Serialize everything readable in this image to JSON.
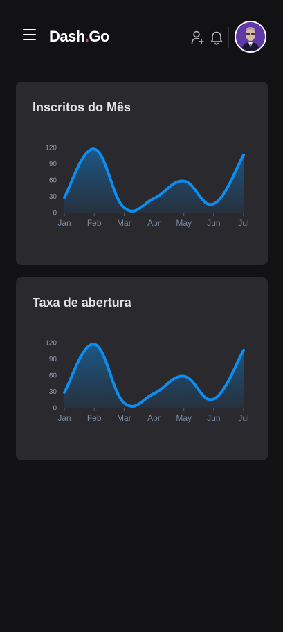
{
  "header": {
    "logo_main": "Dash",
    "logo_dot": ".",
    "logo_suffix": "Go",
    "menu_icon": "hamburger-menu-icon",
    "add_user_icon": "user-add-icon",
    "notification_icon": "bell-icon"
  },
  "colors": {
    "background": "#121214",
    "card": "#29292e",
    "accent_line": "#0b8ef0",
    "logo_dot": "#d53f8c"
  },
  "charts": [
    {
      "title": "Inscritos do Mês",
      "chart_data": {
        "type": "area",
        "title": "Inscritos do Mês",
        "categories": [
          "Jan",
          "Feb",
          "Mar",
          "Apr",
          "May",
          "Jun",
          "Jul"
        ],
        "series": [
          {
            "values": [
              28,
              117,
              9,
              26,
              58,
              16,
              106
            ]
          }
        ],
        "yticks": [
          0,
          30,
          60,
          90,
          120
        ],
        "ylim": [
          0,
          120
        ],
        "grid": false
      }
    },
    {
      "title": "Taxa de abertura",
      "chart_data": {
        "type": "area",
        "title": "Taxa de abertura",
        "categories": [
          "Jan",
          "Feb",
          "Mar",
          "Apr",
          "May",
          "Jun",
          "Jul"
        ],
        "series": [
          {
            "values": [
              28,
              117,
              9,
              26,
              58,
              16,
              106
            ]
          }
        ],
        "yticks": [
          0,
          30,
          60,
          90,
          120
        ],
        "ylim": [
          0,
          120
        ],
        "grid": false
      }
    }
  ]
}
